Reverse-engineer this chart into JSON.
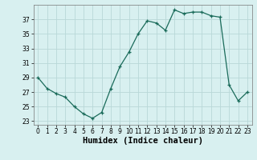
{
  "x": [
    0,
    1,
    2,
    3,
    4,
    5,
    6,
    7,
    8,
    9,
    10,
    11,
    12,
    13,
    14,
    15,
    16,
    17,
    18,
    19,
    20,
    21,
    22,
    23
  ],
  "y": [
    29,
    27.5,
    26.8,
    26.3,
    25.0,
    24.0,
    23.4,
    24.2,
    27.5,
    30.5,
    32.5,
    35.0,
    36.8,
    36.5,
    35.5,
    38.3,
    37.8,
    38.0,
    38.0,
    37.5,
    37.3,
    28.0,
    25.8,
    27.0
  ],
  "xlim": [
    -0.5,
    23.5
  ],
  "ylim": [
    22.5,
    39.0
  ],
  "yticks": [
    23,
    25,
    27,
    29,
    31,
    33,
    35,
    37
  ],
  "xticks": [
    0,
    1,
    2,
    3,
    4,
    5,
    6,
    7,
    8,
    9,
    10,
    11,
    12,
    13,
    14,
    15,
    16,
    17,
    18,
    19,
    20,
    21,
    22,
    23
  ],
  "xlabel": "Humidex (Indice chaleur)",
  "line_color": "#1a6b5a",
  "marker": "+",
  "bg_color": "#d8f0f0",
  "grid_color": "#b8d8d8",
  "tick_label_fontsize": 5.5,
  "xlabel_fontsize": 7.5,
  "xlabel_fontweight": "bold"
}
